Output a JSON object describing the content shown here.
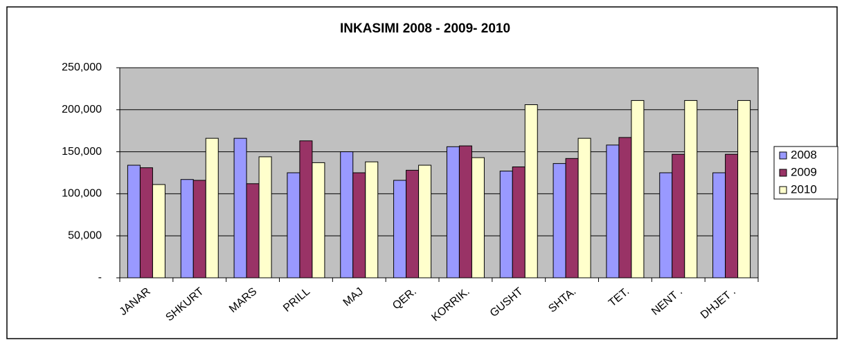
{
  "chart_data": {
    "type": "bar",
    "title": "INKASIMI 2008 - 2009- 2010",
    "categories": [
      "JANAR",
      "SHKURT",
      "MARS",
      "PRILL",
      "MAJ",
      "QER.",
      "KORRIK.",
      "GUSHT",
      "SHTA.",
      "TET.",
      "NENT .",
      "DHJET ."
    ],
    "series": [
      {
        "name": "2008",
        "color": "#9999ff",
        "values": [
          134000,
          117000,
          166000,
          125000,
          150000,
          116000,
          156000,
          127000,
          136000,
          158000,
          125000,
          125000
        ]
      },
      {
        "name": "2009",
        "color": "#993366",
        "values": [
          131000,
          116000,
          112000,
          163000,
          125000,
          128000,
          157000,
          132000,
          142000,
          167000,
          147000,
          147000
        ]
      },
      {
        "name": "2010",
        "color": "#ffffcc",
        "values": [
          111000,
          166000,
          144000,
          137000,
          138000,
          134000,
          143000,
          206000,
          166000,
          211000,
          211000,
          211000
        ]
      }
    ],
    "ylim": [
      0,
      250000
    ],
    "yticks": [
      {
        "value": 0,
        "label": "-"
      },
      {
        "value": 50000,
        "label": "50,000"
      },
      {
        "value": 100000,
        "label": "100,000"
      },
      {
        "value": 150000,
        "label": "150,000"
      },
      {
        "value": 200000,
        "label": "200,000"
      },
      {
        "value": 250000,
        "label": "250,000"
      }
    ],
    "grid": true,
    "legend": "right",
    "plot_background": "#c0c0c0"
  }
}
